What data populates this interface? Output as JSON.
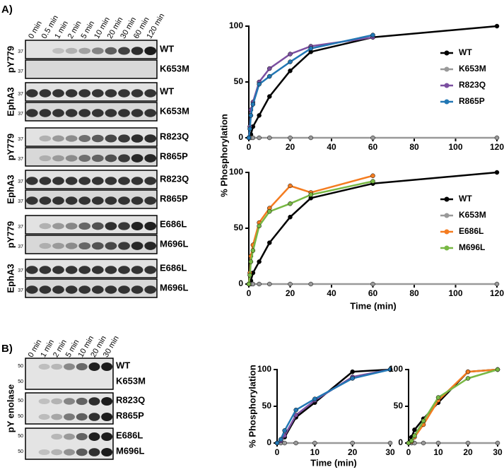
{
  "panel_labels": [
    "A)",
    "B)"
  ],
  "blot_a": {
    "lanes": [
      "0 min",
      "0.5 min",
      "1 min",
      "2 min",
      "5 min",
      "10 min",
      "20 min",
      "30 min",
      "60 min",
      "120 min"
    ],
    "groups": [
      {
        "antibody": "pY779",
        "rows": [
          "WT",
          "K653M"
        ],
        "marker": "37"
      },
      {
        "antibody": "EphA3",
        "rows": [
          "WT",
          "K653M"
        ],
        "marker": "37"
      },
      {
        "antibody": "pY779",
        "rows": [
          "R823Q",
          "R865P"
        ],
        "marker": "37"
      },
      {
        "antibody": "EphA3",
        "rows": [
          "R823Q",
          "R865P"
        ],
        "marker": "37"
      },
      {
        "antibody": "pY779",
        "rows": [
          "E686L",
          "M696L"
        ],
        "marker": "37"
      },
      {
        "antibody": "EphA3",
        "rows": [
          "E686L",
          "M696L"
        ],
        "marker": "37"
      }
    ]
  },
  "blot_b": {
    "lanes": [
      "0 min",
      "1 min",
      "2 min",
      "5 min",
      "10 min",
      "20 min",
      "30 min"
    ],
    "antibody": "pY enolase",
    "marker": "50",
    "boxes": [
      [
        "WT",
        "K653M"
      ],
      [
        "R823Q",
        "R865P"
      ],
      [
        "E686L",
        "M696L"
      ]
    ]
  },
  "chart_data": [
    {
      "type": "line",
      "ylabel": "% Phosphorylation",
      "x": [
        0,
        0.5,
        1,
        2,
        5,
        10,
        20,
        30,
        60,
        120
      ],
      "series": [
        {
          "name": "WT",
          "color": "#000000",
          "values": [
            0,
            1,
            3,
            10,
            20,
            37,
            60,
            77,
            90,
            100
          ]
        },
        {
          "name": "K653M",
          "color": "#999999",
          "values": [
            0,
            0,
            0,
            0,
            0,
            0,
            0,
            0,
            0,
            0
          ]
        },
        {
          "name": "R823Q",
          "color": "#7b4fa0",
          "values": [
            0,
            10,
            25,
            32,
            50,
            62,
            75,
            82,
            90,
            null
          ]
        },
        {
          "name": "R865P",
          "color": "#2277b4",
          "values": [
            0,
            8,
            20,
            30,
            48,
            55,
            68,
            80,
            92,
            null
          ]
        }
      ],
      "xlim": [
        0,
        120
      ],
      "ylim": [
        0,
        100
      ],
      "xticks": [
        0,
        20,
        40,
        60,
        80,
        100,
        120
      ],
      "yticks": [
        0,
        50,
        100
      ],
      "legend": "right"
    },
    {
      "type": "line",
      "xlabel": "Time (min)",
      "x": [
        0,
        0.5,
        1,
        2,
        5,
        10,
        20,
        30,
        60,
        120
      ],
      "series": [
        {
          "name": "WT",
          "color": "#000000",
          "values": [
            0,
            1,
            3,
            10,
            20,
            37,
            60,
            77,
            90,
            100
          ]
        },
        {
          "name": "K653M",
          "color": "#999999",
          "values": [
            0,
            0,
            0,
            0,
            0,
            0,
            0,
            0,
            0,
            0
          ]
        },
        {
          "name": "E686L",
          "color": "#f47c20",
          "values": [
            0,
            10,
            25,
            35,
            55,
            68,
            88,
            82,
            97,
            null
          ]
        },
        {
          "name": "M696L",
          "color": "#78b844",
          "values": [
            0,
            8,
            20,
            30,
            52,
            65,
            72,
            80,
            92,
            null
          ]
        }
      ],
      "xlim": [
        0,
        120
      ],
      "ylim": [
        0,
        100
      ],
      "xticks": [
        0,
        20,
        40,
        60,
        80,
        100,
        120
      ],
      "yticks": [
        0,
        50,
        100
      ],
      "legend": "right"
    },
    {
      "type": "line",
      "ylabel": "% Phosphorylation",
      "xlabel": "Time (min)",
      "x": [
        0,
        1,
        2,
        5,
        10,
        20,
        30
      ],
      "series": [
        {
          "name": "WT",
          "color": "#000000",
          "values": [
            0,
            4,
            8,
            35,
            55,
            97,
            100
          ]
        },
        {
          "name": "K653M",
          "color": "#999999",
          "values": [
            0,
            0,
            0,
            0,
            0,
            0,
            0
          ]
        },
        {
          "name": "R823Q",
          "color": "#7b4fa0",
          "values": [
            0,
            3,
            10,
            38,
            58,
            90,
            100
          ]
        },
        {
          "name": "R865P",
          "color": "#2277b4",
          "values": [
            0,
            5,
            17,
            45,
            60,
            88,
            100
          ]
        }
      ],
      "xlim": [
        0,
        30
      ],
      "ylim": [
        0,
        100
      ],
      "xticks": [
        0,
        10,
        20,
        30
      ],
      "yticks": [
        0,
        50,
        100
      ],
      "legend": false
    },
    {
      "type": "line",
      "x": [
        0,
        1,
        2,
        5,
        10,
        20,
        30
      ],
      "series": [
        {
          "name": "WT",
          "color": "#000000",
          "values": [
            0,
            8,
            18,
            33,
            55,
            97,
            100
          ]
        },
        {
          "name": "K653M",
          "color": "#999999",
          "values": [
            0,
            0,
            0,
            0,
            0,
            0,
            0
          ]
        },
        {
          "name": "E686L",
          "color": "#f47c20",
          "values": [
            0,
            2,
            8,
            25,
            58,
            97,
            100
          ]
        },
        {
          "name": "M696L",
          "color": "#78b844",
          "values": [
            0,
            3,
            10,
            30,
            62,
            88,
            100
          ]
        }
      ],
      "xlim": [
        0,
        30
      ],
      "ylim": [
        0,
        100
      ],
      "xticks": [
        0,
        10,
        20,
        30
      ],
      "yticks": [
        0,
        50,
        100
      ],
      "legend": false
    }
  ]
}
